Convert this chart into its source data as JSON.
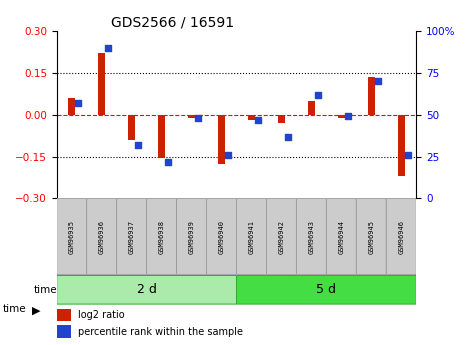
{
  "title": "GDS2566 / 16591",
  "samples": [
    "GSM96935",
    "GSM96936",
    "GSM96937",
    "GSM96938",
    "GSM96939",
    "GSM96940",
    "GSM96941",
    "GSM96942",
    "GSM96943",
    "GSM96944",
    "GSM96945",
    "GSM96946"
  ],
  "log2_ratio": [
    0.06,
    0.22,
    -0.09,
    -0.155,
    -0.01,
    -0.175,
    -0.02,
    -0.03,
    0.05,
    -0.01,
    0.135,
    -0.22
  ],
  "percentile_rank": [
    57,
    90,
    32,
    22,
    48,
    26,
    47,
    37,
    62,
    49,
    70,
    26
  ],
  "groups": [
    {
      "label": "2 d",
      "start": 0,
      "end": 6,
      "color": "#AAEAAA"
    },
    {
      "label": "5 d",
      "start": 6,
      "end": 12,
      "color": "#44DD44"
    }
  ],
  "ylim_left": [
    -0.3,
    0.3
  ],
  "ylim_right": [
    0,
    100
  ],
  "yticks_left": [
    -0.3,
    -0.15,
    0,
    0.15,
    0.3
  ],
  "yticks_right": [
    0,
    25,
    50,
    75,
    100
  ],
  "ytick_right_labels": [
    "0",
    "25",
    "50",
    "75",
    "100%"
  ],
  "hlines_dotted": [
    -0.15,
    0.15
  ],
  "hline_dashed": 0,
  "bar_color_red": "#CC2200",
  "bar_color_blue": "#2244CC",
  "bg_color": "#FFFFFF",
  "plot_bg": "#FFFFFF",
  "legend_red": "log2 ratio",
  "legend_blue": "percentile rank within the sample",
  "time_label": "time",
  "box_color": "#CCCCCC",
  "box_edge": "#999999"
}
